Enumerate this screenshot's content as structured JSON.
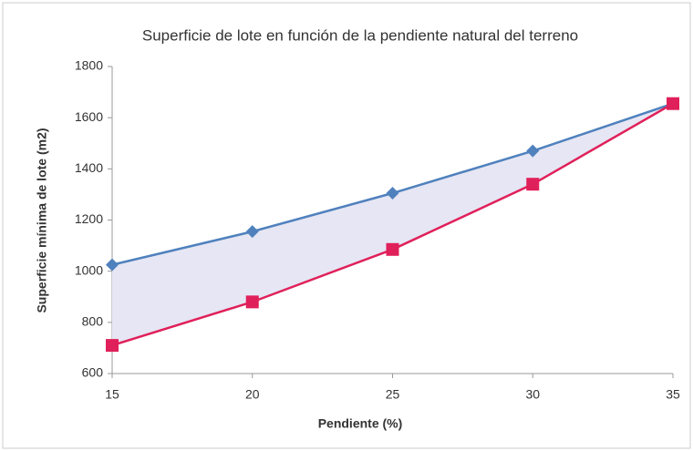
{
  "chart_data": {
    "type": "line",
    "title": "Superficie de lote en función de la pendiente natural del terreno",
    "x_label": "Pendiente (%)",
    "y_label": "Superficie mínima de lote (m2)",
    "x": [
      15,
      20,
      25,
      30,
      35
    ],
    "series": [
      {
        "color": "#4f81bd",
        "marker": "diamond",
        "values": [
          1025,
          1155,
          1305,
          1470,
          1655
        ]
      },
      {
        "color": "#e0205a",
        "marker": "square",
        "values": [
          710,
          880,
          1085,
          1340,
          1655
        ]
      }
    ],
    "fill_between": "#e6e6f4",
    "xlim": [
      15,
      35
    ],
    "xticks": [
      15,
      20,
      25,
      30,
      35
    ],
    "ylim": [
      600,
      1800
    ],
    "yticks": [
      600,
      800,
      1000,
      1200,
      1400,
      1600,
      1800
    ],
    "grid": false
  }
}
